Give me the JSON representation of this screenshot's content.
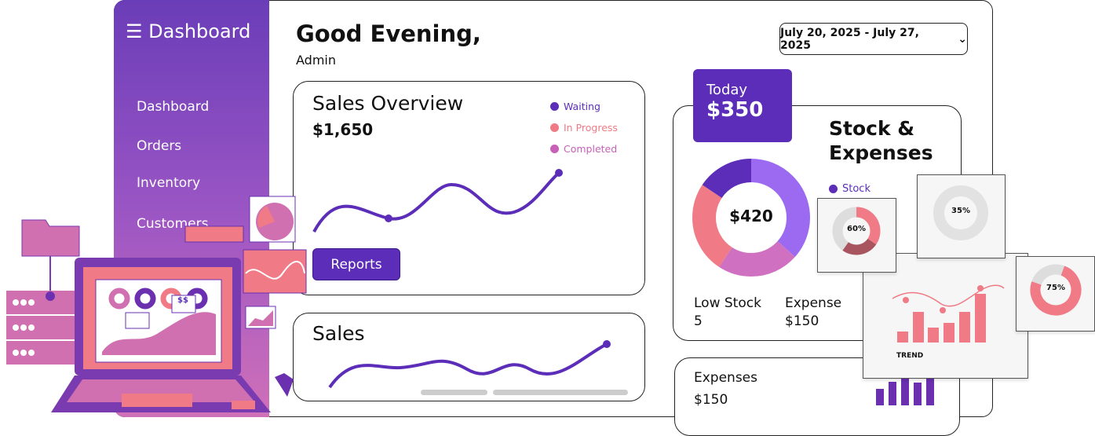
{
  "sidebar": {
    "title": "Dashboard",
    "items": [
      {
        "label": "Dashboard"
      },
      {
        "label": "Orders"
      },
      {
        "label": "Inventory"
      },
      {
        "label": "Customers"
      }
    ]
  },
  "header": {
    "greeting": "Good Evening,",
    "user": "Admin",
    "date_range": "July 20, 2025 - July 27, 2025"
  },
  "sales_overview": {
    "title": "Sales Overview",
    "amount": "$1,650",
    "legend": [
      {
        "label": "Waiting",
        "color": "#5b2db8"
      },
      {
        "label": "In Progress",
        "color": "#f07a85"
      },
      {
        "label": "Completed",
        "color": "#c860b8"
      }
    ],
    "reports_label": "Reports"
  },
  "sales": {
    "title": "Sales"
  },
  "today": {
    "label": "Today",
    "amount": "$350"
  },
  "stock": {
    "title_line1": "Stock &",
    "title_line2": "Expenses",
    "donut_value": "$420",
    "legend": "Stock",
    "low_stock_label": "Low Stock",
    "low_stock_value": "5",
    "expense_label": "Expense",
    "expense_value": "$150"
  },
  "expenses": {
    "title": "Expenses",
    "amount": "$150"
  },
  "widgets": {
    "pct1": "60%",
    "pct2": "35%",
    "pct3": "75%",
    "trend": "TREND",
    "laptop_badge": "$$"
  },
  "colors": {
    "accent": "#5b2db8",
    "pink": "#f07a85",
    "magenta": "#c860b8"
  }
}
